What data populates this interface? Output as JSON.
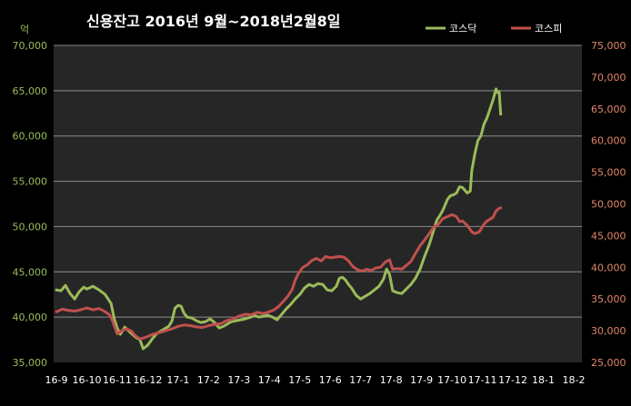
{
  "chart_data": {
    "type": "line",
    "title": "신용잔고 2016년 9월~2018년2월8일",
    "left_unit_label": "억",
    "x_ticks": [
      "16-9",
      "16-10",
      "16-11",
      "16-12",
      "17-1",
      "17-2",
      "17-3",
      "17-4",
      "17-5",
      "17-6",
      "17-7",
      "17-8",
      "17-9",
      "17-10",
      "17-11",
      "17-12",
      "18-1",
      "18-2"
    ],
    "y_left": {
      "min": 35000,
      "max": 70000,
      "step": 5000,
      "ticks": [
        "35,000",
        "40,000",
        "45,000",
        "50,000",
        "55,000",
        "60,000",
        "65,000",
        "70,000"
      ]
    },
    "y_right": {
      "min": 25000,
      "max": 75000,
      "step": 5000,
      "ticks": [
        "25,000",
        "30,000",
        "35,000",
        "40,000",
        "45,000",
        "50,000",
        "55,000",
        "60,000",
        "65,000",
        "70,000",
        "75,000"
      ]
    },
    "grid": true,
    "legend_position": "top-right",
    "series": [
      {
        "name": "코스닥",
        "axis": "left",
        "color": "#9BBB59",
        "points": [
          [
            0,
            43000
          ],
          [
            0.15,
            42900
          ],
          [
            0.3,
            43500
          ],
          [
            0.45,
            42600
          ],
          [
            0.6,
            42000
          ],
          [
            0.75,
            42800
          ],
          [
            0.9,
            43300
          ],
          [
            1.0,
            43100
          ],
          [
            1.2,
            43400
          ],
          [
            1.4,
            43000
          ],
          [
            1.6,
            42500
          ],
          [
            1.8,
            41500
          ],
          [
            1.9,
            39800
          ],
          [
            2.0,
            38800
          ],
          [
            2.1,
            38100
          ],
          [
            2.25,
            38900
          ],
          [
            2.4,
            38400
          ],
          [
            2.6,
            37800
          ],
          [
            2.75,
            37500
          ],
          [
            2.85,
            36500
          ],
          [
            3.0,
            36900
          ],
          [
            3.15,
            37600
          ],
          [
            3.3,
            38200
          ],
          [
            3.5,
            38600
          ],
          [
            3.7,
            39000
          ],
          [
            3.8,
            39600
          ],
          [
            3.9,
            41000
          ],
          [
            4.0,
            41300
          ],
          [
            4.1,
            41200
          ],
          [
            4.2,
            40400
          ],
          [
            4.3,
            40000
          ],
          [
            4.45,
            39900
          ],
          [
            4.6,
            39600
          ],
          [
            4.75,
            39400
          ],
          [
            4.9,
            39500
          ],
          [
            5.05,
            39800
          ],
          [
            5.2,
            39400
          ],
          [
            5.35,
            38800
          ],
          [
            5.5,
            39000
          ],
          [
            5.6,
            39200
          ],
          [
            5.75,
            39500
          ],
          [
            5.9,
            39600
          ],
          [
            6.05,
            39700
          ],
          [
            6.2,
            39800
          ],
          [
            6.4,
            40000
          ],
          [
            6.5,
            40200
          ],
          [
            6.65,
            40000
          ],
          [
            6.8,
            40100
          ],
          [
            6.95,
            40200
          ],
          [
            7.1,
            40000
          ],
          [
            7.25,
            39700
          ],
          [
            7.4,
            40300
          ],
          [
            7.55,
            40900
          ],
          [
            7.7,
            41400
          ],
          [
            7.85,
            42000
          ],
          [
            8.0,
            42500
          ],
          [
            8.15,
            43200
          ],
          [
            8.3,
            43600
          ],
          [
            8.45,
            43400
          ],
          [
            8.6,
            43700
          ],
          [
            8.75,
            43600
          ],
          [
            8.9,
            43000
          ],
          [
            9.05,
            42900
          ],
          [
            9.2,
            43400
          ],
          [
            9.3,
            44300
          ],
          [
            9.4,
            44400
          ],
          [
            9.5,
            44100
          ],
          [
            9.6,
            43600
          ],
          [
            9.7,
            43200
          ],
          [
            9.85,
            42400
          ],
          [
            10.0,
            42000
          ],
          [
            10.15,
            42300
          ],
          [
            10.3,
            42600
          ],
          [
            10.45,
            43000
          ],
          [
            10.6,
            43400
          ],
          [
            10.75,
            44200
          ],
          [
            10.85,
            45300
          ],
          [
            10.95,
            44700
          ],
          [
            11.05,
            42900
          ],
          [
            11.2,
            42700
          ],
          [
            11.35,
            42600
          ],
          [
            11.5,
            43100
          ],
          [
            11.65,
            43600
          ],
          [
            11.8,
            44300
          ],
          [
            11.95,
            45300
          ],
          [
            12.1,
            46700
          ],
          [
            12.25,
            48000
          ],
          [
            12.4,
            49600
          ],
          [
            12.5,
            50700
          ],
          [
            12.6,
            51200
          ],
          [
            12.7,
            51800
          ],
          [
            12.85,
            53000
          ],
          [
            12.95,
            53400
          ],
          [
            13.05,
            53500
          ],
          [
            13.15,
            53700
          ],
          [
            13.25,
            54400
          ],
          [
            13.35,
            54300
          ],
          [
            13.5,
            53700
          ],
          [
            13.6,
            53900
          ],
          [
            13.65,
            56200
          ],
          [
            13.75,
            58000
          ],
          [
            13.85,
            59500
          ],
          [
            13.95,
            60000
          ],
          [
            14.05,
            61300
          ],
          [
            14.15,
            62000
          ],
          [
            14.25,
            63000
          ],
          [
            14.35,
            64000
          ],
          [
            14.45,
            65200
          ],
          [
            14.5,
            64800
          ],
          [
            14.55,
            64900
          ],
          [
            14.6,
            62400
          ]
        ]
      },
      {
        "name": "코스피",
        "axis": "right",
        "color": "#C0504D",
        "points": [
          [
            0,
            33000
          ],
          [
            0.2,
            33400
          ],
          [
            0.4,
            33200
          ],
          [
            0.6,
            33100
          ],
          [
            0.8,
            33300
          ],
          [
            1.0,
            33600
          ],
          [
            1.2,
            33300
          ],
          [
            1.4,
            33500
          ],
          [
            1.6,
            33000
          ],
          [
            1.75,
            32500
          ],
          [
            1.85,
            31500
          ],
          [
            2.0,
            29500
          ],
          [
            2.15,
            30000
          ],
          [
            2.3,
            30300
          ],
          [
            2.45,
            30000
          ],
          [
            2.6,
            29200
          ],
          [
            2.75,
            28700
          ],
          [
            2.9,
            28900
          ],
          [
            3.05,
            29200
          ],
          [
            3.2,
            29500
          ],
          [
            3.4,
            29700
          ],
          [
            3.6,
            30000
          ],
          [
            3.8,
            30300
          ],
          [
            4.0,
            30700
          ],
          [
            4.2,
            30900
          ],
          [
            4.4,
            30800
          ],
          [
            4.6,
            30600
          ],
          [
            4.8,
            30500
          ],
          [
            5.0,
            30800
          ],
          [
            5.2,
            31000
          ],
          [
            5.4,
            31100
          ],
          [
            5.6,
            31600
          ],
          [
            5.8,
            31800
          ],
          [
            6.0,
            32300
          ],
          [
            6.2,
            32600
          ],
          [
            6.4,
            32500
          ],
          [
            6.6,
            32900
          ],
          [
            6.8,
            32700
          ],
          [
            7.0,
            33000
          ],
          [
            7.15,
            33300
          ],
          [
            7.3,
            33800
          ],
          [
            7.45,
            34600
          ],
          [
            7.6,
            35400
          ],
          [
            7.75,
            36500
          ],
          [
            7.85,
            38000
          ],
          [
            7.95,
            39000
          ],
          [
            8.1,
            40000
          ],
          [
            8.25,
            40400
          ],
          [
            8.4,
            41100
          ],
          [
            8.55,
            41400
          ],
          [
            8.7,
            41000
          ],
          [
            8.85,
            41700
          ],
          [
            9.0,
            41500
          ],
          [
            9.15,
            41600
          ],
          [
            9.3,
            41700
          ],
          [
            9.45,
            41600
          ],
          [
            9.6,
            41000
          ],
          [
            9.75,
            40100
          ],
          [
            9.9,
            39600
          ],
          [
            10.05,
            39400
          ],
          [
            10.2,
            39700
          ],
          [
            10.35,
            39500
          ],
          [
            10.5,
            39900
          ],
          [
            10.65,
            40000
          ],
          [
            10.8,
            40800
          ],
          [
            10.95,
            41200
          ],
          [
            11.05,
            39700
          ],
          [
            11.2,
            39800
          ],
          [
            11.35,
            39700
          ],
          [
            11.5,
            40300
          ],
          [
            11.65,
            40900
          ],
          [
            11.8,
            42200
          ],
          [
            11.95,
            43400
          ],
          [
            12.1,
            44300
          ],
          [
            12.25,
            45300
          ],
          [
            12.4,
            46300
          ],
          [
            12.55,
            46800
          ],
          [
            12.7,
            47700
          ],
          [
            12.85,
            48000
          ],
          [
            13.0,
            48300
          ],
          [
            13.15,
            48000
          ],
          [
            13.25,
            47200
          ],
          [
            13.35,
            47300
          ],
          [
            13.5,
            46600
          ],
          [
            13.65,
            45600
          ],
          [
            13.75,
            45300
          ],
          [
            13.9,
            45600
          ],
          [
            14.05,
            46800
          ],
          [
            14.15,
            47300
          ],
          [
            14.25,
            47600
          ],
          [
            14.35,
            47900
          ],
          [
            14.45,
            48900
          ],
          [
            14.55,
            49300
          ],
          [
            14.6,
            49400
          ]
        ]
      }
    ]
  }
}
